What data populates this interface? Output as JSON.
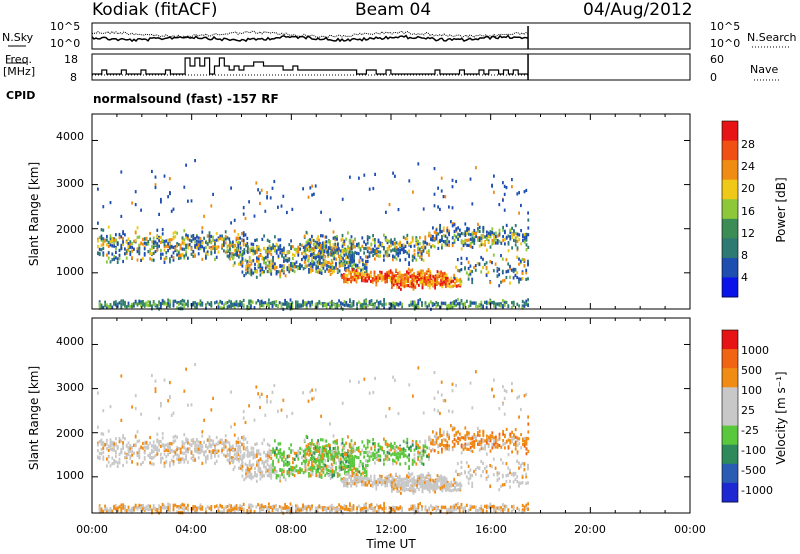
{
  "header": {
    "station": "Kodiak (fitACF)",
    "beam": "Beam 04",
    "date": "04/Aug/2012"
  },
  "top_panels": {
    "nsky_label": "N.Sky",
    "nsearch_label": "N.Search",
    "noise_ticks": [
      "10^5",
      "10^0"
    ],
    "freq_label_1": "Freq.",
    "freq_label_2": "[MHz]",
    "freq_ticks": [
      "18",
      "8"
    ],
    "nave_label": "Nave",
    "nave_ticks": [
      "60",
      "0"
    ],
    "cpid_label": "CPID",
    "cpid_text": "normalsound (fast) -157 RF"
  },
  "chart_data": [
    {
      "type": "heatmap",
      "title": "",
      "xlabel": "",
      "ylabel": "Slant Range [km]",
      "x_ticks": [
        "00:00",
        "04:00",
        "08:00",
        "12:00",
        "16:00",
        "20:00",
        "00:00"
      ],
      "xlim_hours": [
        0,
        24
      ],
      "ylim": [
        180,
        4600
      ],
      "y_ticks": [
        1000,
        2000,
        3000,
        4000
      ],
      "colorbar": {
        "label": "Power [dB]",
        "ticks": [
          4,
          8,
          12,
          16,
          20,
          24,
          28
        ],
        "range": [
          0,
          30
        ],
        "colors": [
          "#0a14e8",
          "#1e4eb0",
          "#2e7a72",
          "#3c8c56",
          "#8cc83a",
          "#f0c818",
          "#f08c14",
          "#f05014",
          "#e61414"
        ]
      },
      "data_end_hour": 17.5
    },
    {
      "type": "heatmap",
      "title": "",
      "xlabel": "Time UT",
      "ylabel": "Slant Range [km]",
      "x_ticks": [
        "00:00",
        "04:00",
        "08:00",
        "12:00",
        "16:00",
        "20:00",
        "00:00"
      ],
      "xlim_hours": [
        0,
        24
      ],
      "ylim": [
        180,
        4600
      ],
      "y_ticks": [
        1000,
        2000,
        3000,
        4000
      ],
      "colorbar": {
        "label": "Velocity [m s⁻¹]",
        "ticks": [
          "1000",
          "500",
          "100",
          "25",
          "-25",
          "-100",
          "-500",
          "-1000"
        ],
        "colors": [
          "#1e28d2",
          "#2a5cb4",
          "#2e8a5a",
          "#5ac83c",
          "#c8c8c8",
          "#c8c8c8",
          "#f08c14",
          "#f06414",
          "#e61414"
        ]
      },
      "data_end_hour": 17.5
    }
  ]
}
